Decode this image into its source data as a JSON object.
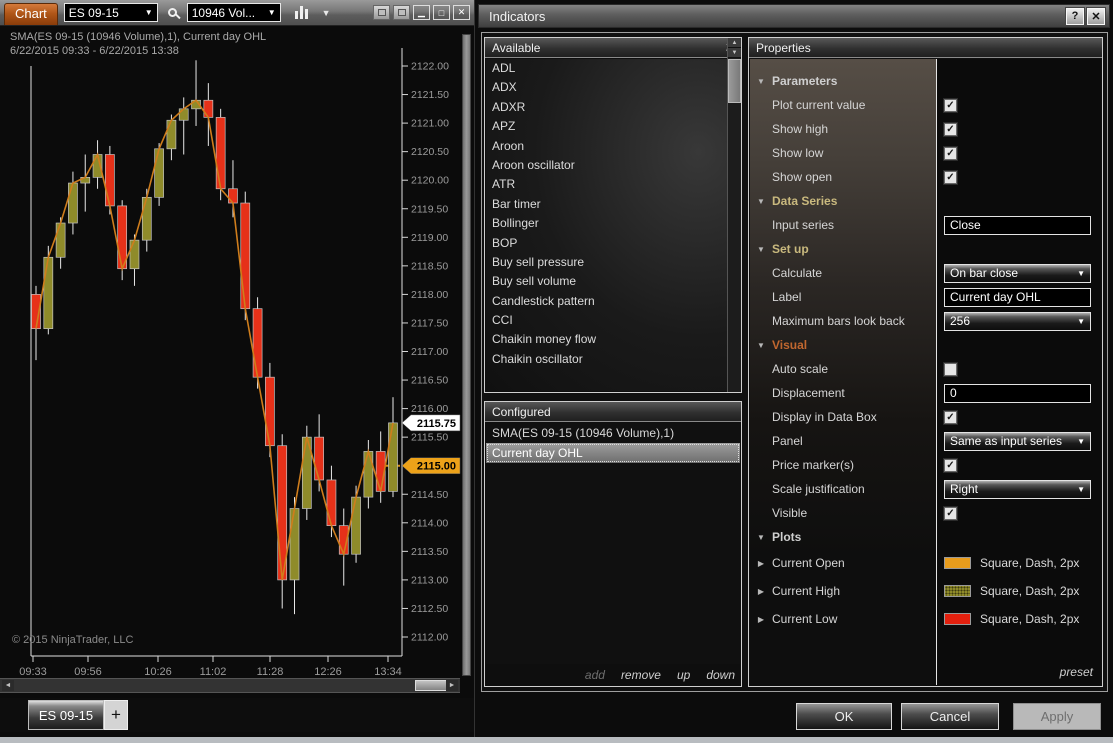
{
  "icons": {
    "combo_chevron": "▼",
    "toolbar_chevron": "▼",
    "minimize": "▁",
    "restore": "□",
    "close": "✕",
    "help": "?",
    "info": "i",
    "up_arrow": "▲",
    "down_arrow": "▼",
    "left_arrow": "◄",
    "right_arrow": "►",
    "section_open": "▼",
    "section_closed": "▶",
    "check": "✓",
    "plus": "+"
  },
  "chart_window": {
    "toolbar": {
      "tab": "Chart",
      "instrument": "ES 09-15",
      "interval": "10946 Vol..."
    },
    "overlay": {
      "line1": "SMA(ES 09-15 (10946 Volume),1), Current day OHL",
      "line2": "6/22/2015 09:33 - 6/22/2015 13:38"
    },
    "copyright": "© 2015 NinjaTrader, LLC",
    "bottom_tab": "ES 09-15",
    "add_tab_label": "+"
  },
  "chart_data": {
    "type": "candlestick",
    "symbol": "ES 09-15",
    "title": "SMA(ES 09-15 (10946 Volume),1), Current day OHL",
    "time_range": "6/22/2015 09:33 - 6/22/2015 13:38",
    "x_ticks": [
      "09:33",
      "09:56",
      "10:26",
      "11:02",
      "11:28",
      "12:26",
      "13:34"
    ],
    "x_tick_pos": [
      33,
      88,
      158,
      213,
      270,
      328,
      388
    ],
    "y_ticks": [
      "2122.00",
      "2121.50",
      "2121.00",
      "2120.50",
      "2120.00",
      "2119.50",
      "2119.00",
      "2118.50",
      "2118.00",
      "2117.50",
      "2117.00",
      "2116.50",
      "2116.00",
      "2115.50",
      "2115.00",
      "2114.50",
      "2114.00",
      "2113.50",
      "2113.00",
      "2112.50",
      "2112.00"
    ],
    "y_axis": {
      "top_price": 2122.0,
      "bottom_price": 2112.0
    },
    "price_markers": [
      {
        "price": 2115.75,
        "label": "2115.75",
        "bg": "#ffffff",
        "fg": "#000000"
      },
      {
        "price": 2115.0,
        "label": "2115.00",
        "bg": "#eda219",
        "fg": "#000000"
      }
    ],
    "current_value_line": {
      "price": 2115.0,
      "color": "#eda219"
    },
    "colors": {
      "up": "#8f8b2a",
      "down": "#e63119",
      "wick": "#e8e8e8",
      "sma": "#cf7d1c",
      "outline": "#c4c4c4"
    },
    "candles": [
      [
        2118.0,
        2118.15,
        2116.85,
        2117.4
      ],
      [
        2117.4,
        2118.85,
        2117.3,
        2118.65
      ],
      [
        2118.65,
        2119.35,
        2118.45,
        2119.25
      ],
      [
        2119.25,
        2120.15,
        2119.05,
        2119.95
      ],
      [
        2119.95,
        2120.45,
        2119.45,
        2120.05
      ],
      [
        2120.05,
        2120.7,
        2119.85,
        2120.45
      ],
      [
        2120.45,
        2120.6,
        2119.4,
        2119.55
      ],
      [
        2119.55,
        2119.65,
        2118.25,
        2118.45
      ],
      [
        2118.45,
        2119.05,
        2118.15,
        2118.95
      ],
      [
        2118.95,
        2119.85,
        2118.75,
        2119.7
      ],
      [
        2119.7,
        2120.65,
        2119.55,
        2120.55
      ],
      [
        2120.55,
        2121.15,
        2120.35,
        2121.05
      ],
      [
        2121.05,
        2121.45,
        2120.45,
        2121.25
      ],
      [
        2121.25,
        2122.1,
        2120.95,
        2121.4
      ],
      [
        2121.4,
        2121.7,
        2120.6,
        2121.1
      ],
      [
        2121.1,
        2121.25,
        2119.65,
        2119.85
      ],
      [
        2119.85,
        2120.35,
        2119.35,
        2119.6
      ],
      [
        2119.6,
        2119.8,
        2117.55,
        2117.75
      ],
      [
        2117.75,
        2117.95,
        2116.35,
        2116.55
      ],
      [
        2116.55,
        2116.8,
        2115.15,
        2115.35
      ],
      [
        2115.35,
        2115.55,
        2112.5,
        2113.0
      ],
      [
        2113.0,
        2114.45,
        2112.4,
        2114.25
      ],
      [
        2114.25,
        2115.7,
        2114.05,
        2115.5
      ],
      [
        2115.5,
        2115.9,
        2114.55,
        2114.75
      ],
      [
        2114.75,
        2115.0,
        2113.75,
        2113.95
      ],
      [
        2113.95,
        2114.25,
        2112.9,
        2113.45
      ],
      [
        2113.45,
        2114.65,
        2113.3,
        2114.45
      ],
      [
        2114.45,
        2115.45,
        2114.25,
        2115.25
      ],
      [
        2115.25,
        2115.6,
        2114.35,
        2114.55
      ],
      [
        2114.55,
        2116.2,
        2114.45,
        2115.75
      ]
    ]
  },
  "dialog": {
    "title": "Indicators",
    "available": {
      "header": "Available",
      "items": [
        "ADL",
        "ADX",
        "ADXR",
        "APZ",
        "Aroon",
        "Aroon oscillator",
        "ATR",
        "Bar timer",
        "Bollinger",
        "BOP",
        "Buy sell pressure",
        "Buy sell volume",
        "Candlestick pattern",
        "CCI",
        "Chaikin money flow",
        "Chaikin oscillator"
      ]
    },
    "configured": {
      "header": "Configured",
      "items": [
        {
          "label": "SMA(ES 09-15 (10946 Volume),1)",
          "selected": false
        },
        {
          "label": "Current day OHL",
          "selected": true
        }
      ],
      "actions": [
        {
          "label": "add",
          "enabled": false
        },
        {
          "label": "remove",
          "enabled": true
        },
        {
          "label": "up",
          "enabled": true
        },
        {
          "label": "down",
          "enabled": true
        }
      ]
    },
    "properties": {
      "header": "Properties",
      "preset_label": "preset",
      "rows": [
        {
          "kind": "section",
          "label": "Parameters",
          "color": "#cfcfcf"
        },
        {
          "kind": "check",
          "label": "Plot current value",
          "checked": true
        },
        {
          "kind": "check",
          "label": "Show high",
          "checked": true
        },
        {
          "kind": "check",
          "label": "Show low",
          "checked": true
        },
        {
          "kind": "check",
          "label": "Show open",
          "checked": true
        },
        {
          "kind": "section",
          "label": "Data Series",
          "color": "#c9b97e"
        },
        {
          "kind": "input",
          "label": "Input series",
          "value": "Close"
        },
        {
          "kind": "section",
          "label": "Set up",
          "color": "#c9b97e"
        },
        {
          "kind": "select",
          "label": "Calculate",
          "value": "On bar close"
        },
        {
          "kind": "input",
          "label": "Label",
          "value": "Current day OHL"
        },
        {
          "kind": "select",
          "label": "Maximum bars look back",
          "value": "256"
        },
        {
          "kind": "section",
          "label": "Visual",
          "color": "#c1672f"
        },
        {
          "kind": "check",
          "label": "Auto scale",
          "checked": false
        },
        {
          "kind": "input",
          "label": "Displacement",
          "value": "0"
        },
        {
          "kind": "check",
          "label": "Display in Data Box",
          "checked": true
        },
        {
          "kind": "select",
          "label": "Panel",
          "value": "Same as input series"
        },
        {
          "kind": "check",
          "label": "Price marker(s)",
          "checked": true
        },
        {
          "kind": "select",
          "label": "Scale justification",
          "value": "Right"
        },
        {
          "kind": "check",
          "label": "Visible",
          "checked": true
        },
        {
          "kind": "section",
          "label": "Plots",
          "color": "#cfcfcf"
        },
        {
          "kind": "plot",
          "label": "Current Open",
          "value": "Square, Dash, 2px",
          "color": "#e89c1c",
          "textured": false
        },
        {
          "kind": "plot",
          "label": "Current High",
          "value": "Square, Dash, 2px",
          "color": "#8f8b2a",
          "textured": true
        },
        {
          "kind": "plot",
          "label": "Current Low",
          "value": "Square, Dash, 2px",
          "color": "#e3200e",
          "textured": false
        }
      ]
    },
    "buttons": [
      {
        "label": "OK",
        "enabled": true
      },
      {
        "label": "Cancel",
        "enabled": true
      },
      {
        "label": "Apply",
        "enabled": false
      }
    ]
  }
}
